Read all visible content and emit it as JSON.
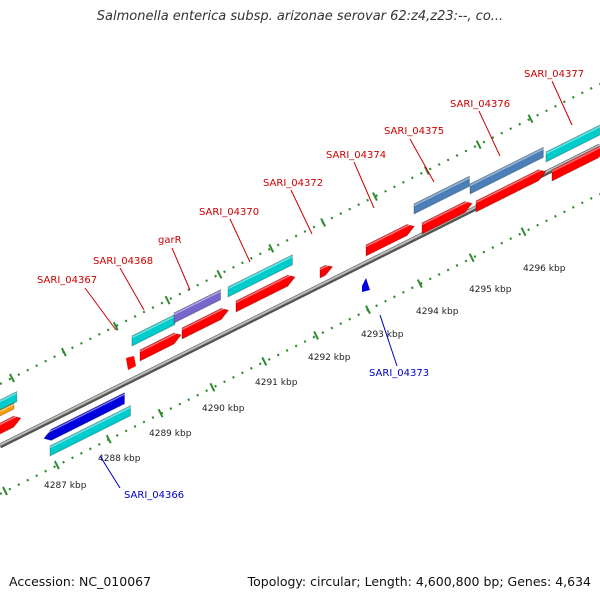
{
  "header": {
    "title": "Salmonella enterica subsp. arizonae serovar 62:z4,z23:--, co..."
  },
  "footer": {
    "accession": "Accession: NC_010067",
    "stats": "Topology: circular; Length: 4,600,800 bp; Genes: 4,634"
  },
  "colors": {
    "red": "#ff0000",
    "cyan": "#00cccc",
    "steelblue": "#4a7fb8",
    "purple": "#7766cc",
    "blue": "#0000dd",
    "orange": "#ff9900",
    "tick": "#2f8a2f",
    "backbone": "#888888",
    "label_red": "#cc0000",
    "label_blue": "#0000cc"
  },
  "scale_labels": [
    "4287 kbp",
    "4288 kbp",
    "4289 kbp",
    "4290 kbp",
    "4291 kbp",
    "4292 kbp",
    "4293 kbp",
    "4294 kbp",
    "4295 kbp",
    "4296 kbp"
  ],
  "gene_labels": [
    {
      "text": "SARI_04367",
      "color": "red"
    },
    {
      "text": "SARI_04368",
      "color": "red"
    },
    {
      "text": "garR",
      "color": "red"
    },
    {
      "text": "SARI_04370",
      "color": "red"
    },
    {
      "text": "SARI_04372",
      "color": "red"
    },
    {
      "text": "SARI_04374",
      "color": "red"
    },
    {
      "text": "SARI_04375",
      "color": "red"
    },
    {
      "text": "SARI_04376",
      "color": "red"
    },
    {
      "text": "SARI_04377",
      "color": "red"
    },
    {
      "text": "SARI_04373",
      "color": "blue"
    },
    {
      "text": "SARI_04366",
      "color": "blue"
    }
  ]
}
